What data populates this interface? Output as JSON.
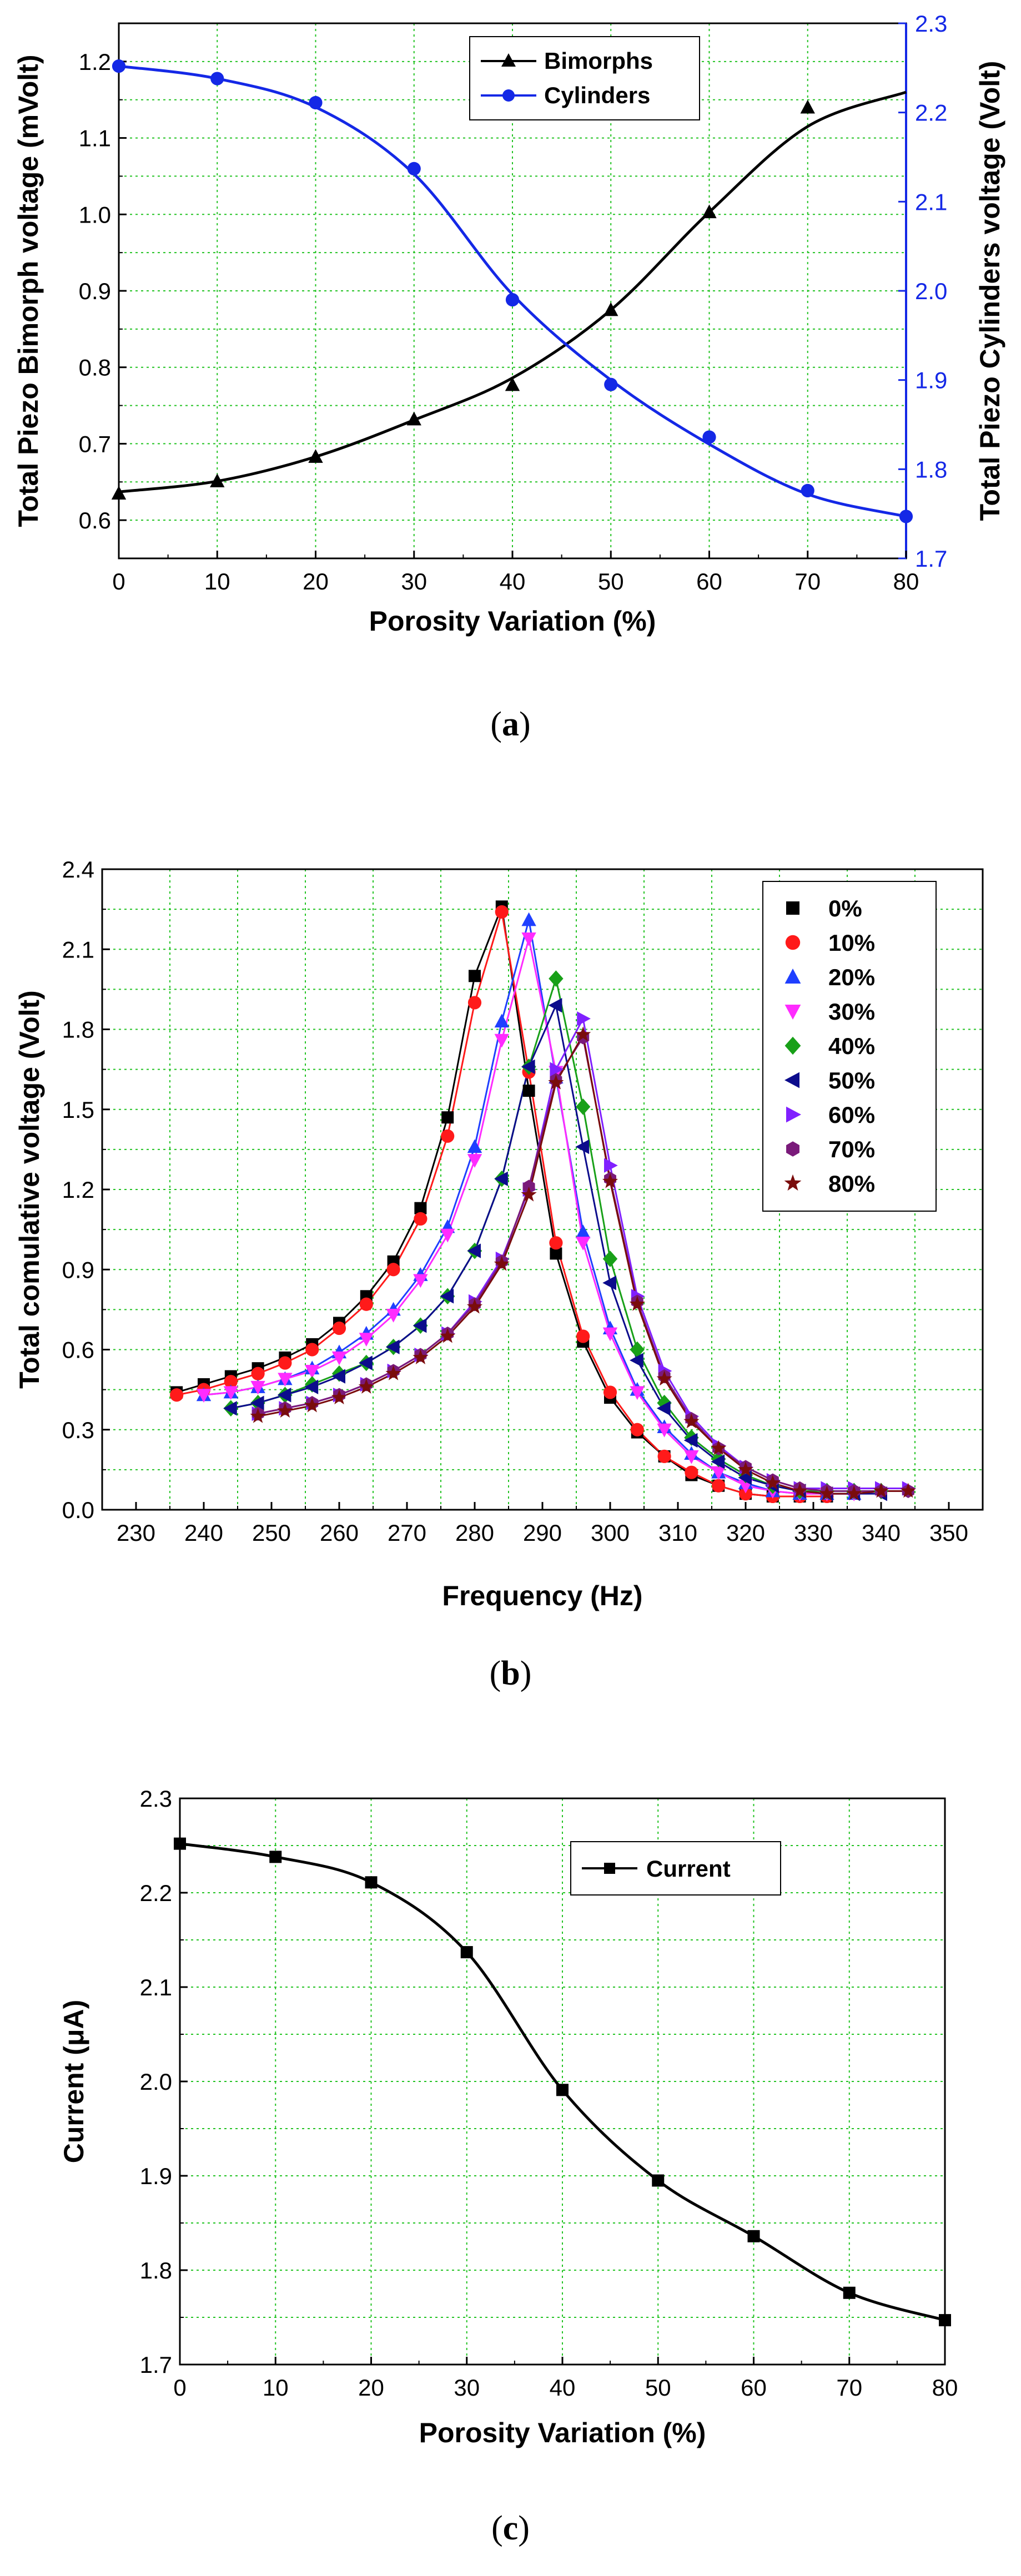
{
  "chart_data": [
    {
      "type": "line",
      "caption": {
        "open": "(",
        "letter": "a",
        "close": ")"
      },
      "xlabel": "Porosity Variation (%)",
      "ylabel": "Total Piezo Bimorph voltage (mVolt)",
      "y2label": "Total Piezo Cylinders voltage (Volt)",
      "xlim": [
        0,
        80
      ],
      "ylim": [
        0.55,
        1.25
      ],
      "y2lim": [
        1.7,
        2.3
      ],
      "xticks": [
        "0",
        "10",
        "20",
        "30",
        "40",
        "50",
        "60",
        "70",
        "80"
      ],
      "yticks": [
        "0.6",
        "0.7",
        "0.8",
        "0.9",
        "1.0",
        "1.1",
        "1.2"
      ],
      "y2ticks": [
        "1.7",
        "1.8",
        "1.9",
        "2.0",
        "2.1",
        "2.2",
        "2.3"
      ],
      "grid": true,
      "legend_position": "top-center",
      "series": [
        {
          "name": "Bimorphs",
          "axis": "left",
          "color": "#000000",
          "marker": "triangle",
          "x": [
            0,
            10,
            20,
            30,
            40,
            50,
            60,
            70
          ],
          "y": [
            0.635,
            0.651,
            0.683,
            0.732,
            0.777,
            0.875,
            1.003,
            1.14
          ],
          "curve_x": [
            0,
            10,
            20,
            30,
            40,
            50,
            60,
            70,
            80
          ],
          "curve_y": [
            0.637,
            0.651,
            0.683,
            0.731,
            0.786,
            0.875,
            1.003,
            1.115,
            1.16
          ]
        },
        {
          "name": "Cylinders",
          "axis": "right",
          "color": "#1428e6",
          "marker": "circle",
          "x": [
            0,
            10,
            20,
            30,
            40,
            50,
            60,
            70,
            80
          ],
          "y": [
            2.252,
            2.238,
            2.211,
            2.137,
            1.99,
            1.895,
            1.836,
            1.776,
            1.747
          ],
          "curve_x": [
            0,
            10,
            20,
            30,
            40,
            50,
            60,
            70,
            80
          ],
          "curve_y": [
            2.252,
            2.238,
            2.206,
            2.131,
            1.996,
            1.9,
            1.828,
            1.772,
            1.747
          ]
        }
      ]
    },
    {
      "type": "line",
      "caption": {
        "open": "(",
        "letter": "b",
        "close": ")"
      },
      "xlabel": "Frequency (Hz)",
      "ylabel": "Total comulative voltage (Volt)",
      "xlim": [
        225,
        355
      ],
      "ylim": [
        0,
        2.4
      ],
      "xticks": [
        "230",
        "240",
        "250",
        "260",
        "270",
        "280",
        "290",
        "300",
        "310",
        "320",
        "330",
        "340",
        "350"
      ],
      "yticks": [
        "0.0",
        "0.3",
        "0.6",
        "0.9",
        "1.2",
        "1.5",
        "1.8",
        "2.1",
        "2.4"
      ],
      "grid": true,
      "legend_position": "top-right",
      "series": [
        {
          "name": "0%",
          "color": "#000000",
          "marker": "square",
          "x": [
            236,
            240,
            244,
            248,
            252,
            256,
            260,
            264,
            268,
            272,
            276,
            280,
            284,
            288,
            292,
            296,
            300,
            304,
            308,
            312,
            316,
            320,
            324,
            328,
            332
          ],
          "y": [
            0.44,
            0.47,
            0.5,
            0.53,
            0.57,
            0.62,
            0.7,
            0.8,
            0.93,
            1.13,
            1.47,
            2.0,
            2.26,
            1.57,
            0.96,
            0.63,
            0.42,
            0.29,
            0.2,
            0.13,
            0.09,
            0.06,
            0.05,
            0.05,
            0.05
          ]
        },
        {
          "name": "10%",
          "color": "#ff1a1a",
          "marker": "circle",
          "x": [
            236,
            240,
            244,
            248,
            252,
            256,
            260,
            264,
            268,
            272,
            276,
            280,
            284,
            288,
            292,
            296,
            300,
            304,
            308,
            312,
            316,
            320,
            324,
            328,
            332
          ],
          "y": [
            0.43,
            0.45,
            0.48,
            0.51,
            0.55,
            0.6,
            0.68,
            0.77,
            0.9,
            1.09,
            1.4,
            1.9,
            2.24,
            1.64,
            1.0,
            0.65,
            0.44,
            0.3,
            0.2,
            0.14,
            0.09,
            0.06,
            0.05,
            0.05,
            0.05
          ]
        },
        {
          "name": "20%",
          "color": "#1f3fff",
          "marker": "triangle",
          "x": [
            240,
            244,
            248,
            252,
            256,
            260,
            264,
            268,
            272,
            276,
            280,
            284,
            288,
            292,
            296,
            300,
            304,
            308,
            312,
            316,
            320,
            324,
            328,
            332,
            336
          ],
          "y": [
            0.43,
            0.44,
            0.46,
            0.49,
            0.53,
            0.59,
            0.66,
            0.75,
            0.88,
            1.06,
            1.36,
            1.83,
            2.21,
            1.62,
            1.04,
            0.68,
            0.45,
            0.31,
            0.21,
            0.14,
            0.1,
            0.07,
            0.06,
            0.06,
            0.06
          ]
        },
        {
          "name": "30%",
          "color": "#ff2bff",
          "marker": "triangle-down",
          "x": [
            240,
            244,
            248,
            252,
            256,
            260,
            264,
            268,
            272,
            276,
            280,
            284,
            288,
            292,
            296,
            300,
            304,
            308,
            312,
            316,
            320,
            324,
            328,
            332,
            336
          ],
          "y": [
            0.43,
            0.44,
            0.46,
            0.49,
            0.52,
            0.57,
            0.64,
            0.73,
            0.86,
            1.03,
            1.31,
            1.76,
            2.14,
            1.64,
            1.0,
            0.66,
            0.44,
            0.3,
            0.2,
            0.14,
            0.09,
            0.07,
            0.06,
            0.06,
            0.06
          ]
        },
        {
          "name": "40%",
          "color": "#18a018",
          "marker": "diamond",
          "x": [
            244,
            248,
            252,
            256,
            260,
            264,
            268,
            272,
            276,
            280,
            284,
            288,
            292,
            296,
            300,
            304,
            308,
            312,
            316,
            320,
            324,
            328,
            332,
            336,
            340
          ],
          "y": [
            0.38,
            0.4,
            0.43,
            0.47,
            0.51,
            0.55,
            0.61,
            0.69,
            0.8,
            0.97,
            1.24,
            1.66,
            1.99,
            1.51,
            0.94,
            0.6,
            0.4,
            0.27,
            0.19,
            0.13,
            0.09,
            0.07,
            0.07,
            0.07,
            0.07
          ]
        },
        {
          "name": "50%",
          "color": "#0c0c8c",
          "marker": "triangle-left",
          "x": [
            244,
            248,
            252,
            256,
            260,
            264,
            268,
            272,
            276,
            280,
            284,
            288,
            292,
            296,
            300,
            304,
            308,
            312,
            316,
            320,
            324,
            328,
            332,
            336,
            340
          ],
          "y": [
            0.38,
            0.4,
            0.43,
            0.46,
            0.5,
            0.55,
            0.61,
            0.69,
            0.8,
            0.97,
            1.24,
            1.66,
            1.89,
            1.36,
            0.85,
            0.56,
            0.38,
            0.26,
            0.18,
            0.12,
            0.09,
            0.07,
            0.06,
            0.06,
            0.06
          ]
        },
        {
          "name": "60%",
          "color": "#8020ff",
          "marker": "triangle-right",
          "x": [
            248,
            252,
            256,
            260,
            264,
            268,
            272,
            276,
            280,
            284,
            288,
            292,
            296,
            300,
            304,
            308,
            312,
            316,
            320,
            324,
            328,
            332,
            336,
            340,
            344
          ],
          "y": [
            0.36,
            0.38,
            0.4,
            0.43,
            0.47,
            0.52,
            0.58,
            0.66,
            0.78,
            0.94,
            1.2,
            1.65,
            1.84,
            1.29,
            0.8,
            0.52,
            0.35,
            0.24,
            0.16,
            0.11,
            0.08,
            0.08,
            0.08,
            0.08,
            0.08
          ]
        },
        {
          "name": "70%",
          "color": "#7a1a7a",
          "marker": "hexagon",
          "x": [
            248,
            252,
            256,
            260,
            264,
            268,
            272,
            276,
            280,
            284,
            288,
            292,
            296,
            300,
            304,
            308,
            312,
            316,
            320,
            324,
            328,
            332,
            336,
            340,
            344
          ],
          "y": [
            0.36,
            0.38,
            0.4,
            0.43,
            0.47,
            0.52,
            0.58,
            0.66,
            0.77,
            0.93,
            1.21,
            1.61,
            1.77,
            1.24,
            0.78,
            0.5,
            0.34,
            0.23,
            0.16,
            0.11,
            0.08,
            0.07,
            0.07,
            0.07,
            0.07
          ]
        },
        {
          "name": "80%",
          "color": "#7a0c0c",
          "marker": "star",
          "x": [
            248,
            252,
            256,
            260,
            264,
            268,
            272,
            276,
            280,
            284,
            288,
            292,
            296,
            300,
            304,
            308,
            312,
            316,
            320,
            324,
            328,
            332,
            336,
            340,
            344
          ],
          "y": [
            0.35,
            0.37,
            0.39,
            0.42,
            0.46,
            0.51,
            0.57,
            0.65,
            0.76,
            0.92,
            1.18,
            1.6,
            1.78,
            1.23,
            0.77,
            0.49,
            0.33,
            0.23,
            0.15,
            0.1,
            0.07,
            0.06,
            0.06,
            0.07,
            0.07
          ]
        }
      ]
    },
    {
      "type": "line",
      "caption": {
        "open": "(",
        "letter": "c",
        "close": ")"
      },
      "xlabel": "Porosity Variation (%)",
      "ylabel": "Current (μA)",
      "xlim": [
        0,
        80
      ],
      "ylim": [
        1.7,
        2.3
      ],
      "xticks": [
        "0",
        "10",
        "20",
        "30",
        "40",
        "50",
        "60",
        "70",
        "80"
      ],
      "yticks": [
        "1.7",
        "1.8",
        "1.9",
        "2.0",
        "2.1",
        "2.2",
        "2.3"
      ],
      "grid": true,
      "legend_position": "top-right",
      "series": [
        {
          "name": "Current",
          "color": "#000000",
          "marker": "square",
          "x": [
            0,
            10,
            20,
            30,
            40,
            50,
            60,
            70,
            80
          ],
          "y": [
            2.252,
            2.238,
            2.211,
            2.137,
            1.991,
            1.895,
            1.836,
            1.776,
            1.747
          ]
        }
      ]
    }
  ]
}
